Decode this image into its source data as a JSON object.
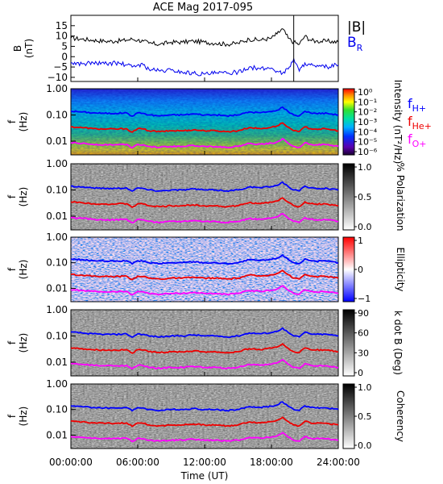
{
  "title": "ACE Mag 2017-095",
  "x_axis": {
    "label": "Time (UT)",
    "ticks": [
      "00:00:00",
      "06:00:00",
      "12:00:00",
      "18:00:00",
      "24:00:00"
    ],
    "tick_hours": [
      0,
      6,
      12,
      18,
      24
    ],
    "range_hours": [
      0,
      24
    ]
  },
  "colors": {
    "total": "#000000",
    "radial": "#0000ee",
    "f_h": "#0000ff",
    "f_he": "#ee0000",
    "f_o": "#ff00ff"
  },
  "legend": {
    "total": "|B|",
    "radial": "B",
    "radial_sub": "R",
    "f_h": "f",
    "f_h_sub": "H+",
    "f_he": "f",
    "f_he_sub": "He+",
    "f_o": "f",
    "f_o_sub": "O+"
  },
  "freq_axis": {
    "ylabel": "f",
    "ylabel_unit": "(Hz)",
    "ticks": [
      "1.00",
      "0.10",
      "0.01"
    ],
    "tick_values": [
      1.0,
      0.1,
      0.01
    ],
    "range": [
      0.003,
      1.0
    ],
    "scale": "log"
  },
  "panels": [
    {
      "name": "intensity",
      "type": "spectrogram",
      "colormap": "rainbow",
      "cb_label": "Intensity (nT²/Hz)",
      "cb_ticks": [
        "10⁰",
        "10⁻¹",
        "10⁻²",
        "10⁻³",
        "10⁻⁴",
        "10⁻⁵",
        "10⁻⁶"
      ]
    },
    {
      "name": "polarization",
      "type": "spectrogram",
      "colormap": "gray",
      "cb_label": "% Polarization",
      "cb_ticks": [
        "1.0",
        "0.5",
        "0.0"
      ]
    },
    {
      "name": "ellipticity",
      "type": "spectrogram",
      "colormap": "bwr",
      "cb_label": "Ellipticity",
      "cb_ticks": [
        "1",
        "0",
        "−1"
      ]
    },
    {
      "name": "kdotb",
      "type": "spectrogram",
      "colormap": "gray",
      "cb_label": "k dot B (Deg)",
      "cb_ticks": [
        "90",
        "60",
        "30",
        "0"
      ]
    },
    {
      "name": "coherency",
      "type": "spectrogram",
      "colormap": "gray",
      "cb_label": "Coherency",
      "cb_ticks": [
        "1.0",
        "0.5",
        "0.0"
      ]
    }
  ],
  "chart_data": {
    "type": "line",
    "title": "ACE Mag 2017-095",
    "b_panel": {
      "ylabel": "B",
      "ylabel_unit": "(nT)",
      "yticks": [
        "15",
        "10",
        "5",
        "0",
        "−5",
        "−10"
      ],
      "ytick_values": [
        15,
        10,
        5,
        0,
        -5,
        -10
      ],
      "ylim": [
        -12,
        20
      ],
      "x_hours": [
        0,
        1,
        2,
        3,
        4,
        5,
        5.5,
        6,
        6.5,
        7,
        8,
        9,
        10,
        11,
        12,
        13,
        14,
        15,
        16,
        17,
        18,
        18.5,
        19,
        19.5,
        20,
        20.5,
        21,
        21.5,
        22,
        23,
        24
      ],
      "series": [
        {
          "name": "|B|",
          "values": [
            9,
            8.5,
            8,
            7.5,
            7.5,
            8,
            8.5,
            8,
            7.5,
            6.5,
            6,
            7,
            7,
            7.5,
            7,
            6.5,
            6,
            6.5,
            8.5,
            8,
            9,
            11,
            13.5,
            9,
            7,
            6,
            10,
            8,
            7.5,
            7.5,
            7
          ]
        },
        {
          "name": "B_R",
          "values": [
            -3,
            -3.5,
            -3,
            -3.5,
            -3,
            -4,
            -5,
            -4,
            -4,
            -6,
            -7,
            -6.5,
            -7.5,
            -8,
            -8.5,
            -8,
            -8,
            -7.5,
            -5,
            -6,
            -5.5,
            -7,
            -8,
            -6,
            -1,
            -7,
            -3,
            -4,
            -5,
            -5,
            -4
          ]
        }
      ]
    },
    "frequency_lines": {
      "x_hours": [
        0,
        1,
        2,
        3,
        4,
        5,
        5.5,
        6,
        6.5,
        7,
        8,
        9,
        10,
        11,
        12,
        13,
        14,
        15,
        16,
        17,
        18,
        18.5,
        19,
        19.5,
        20,
        20.5,
        21,
        21.5,
        22,
        23,
        24
      ],
      "series": [
        {
          "name": "f H+",
          "values": [
            0.14,
            0.13,
            0.12,
            0.115,
            0.115,
            0.12,
            0.09,
            0.12,
            0.115,
            0.1,
            0.092,
            0.1,
            0.1,
            0.11,
            0.1,
            0.1,
            0.092,
            0.1,
            0.13,
            0.122,
            0.135,
            0.15,
            0.2,
            0.135,
            0.1,
            0.092,
            0.14,
            0.12,
            0.115,
            0.115,
            0.1
          ]
        },
        {
          "name": "f He+",
          "values": [
            0.035,
            0.033,
            0.03,
            0.029,
            0.029,
            0.03,
            0.022,
            0.03,
            0.029,
            0.025,
            0.023,
            0.025,
            0.025,
            0.027,
            0.025,
            0.025,
            0.023,
            0.025,
            0.033,
            0.03,
            0.034,
            0.038,
            0.05,
            0.034,
            0.025,
            0.023,
            0.035,
            0.03,
            0.029,
            0.029,
            0.025
          ]
        },
        {
          "name": "f O+",
          "values": [
            0.0088,
            0.0082,
            0.0076,
            0.0073,
            0.0073,
            0.0076,
            0.0056,
            0.0076,
            0.0073,
            0.0063,
            0.0058,
            0.0063,
            0.0063,
            0.0069,
            0.0063,
            0.0063,
            0.0058,
            0.0063,
            0.0082,
            0.0076,
            0.0084,
            0.0094,
            0.0125,
            0.0084,
            0.0063,
            0.0058,
            0.0088,
            0.0076,
            0.0073,
            0.0073,
            0.0063
          ]
        }
      ]
    }
  }
}
